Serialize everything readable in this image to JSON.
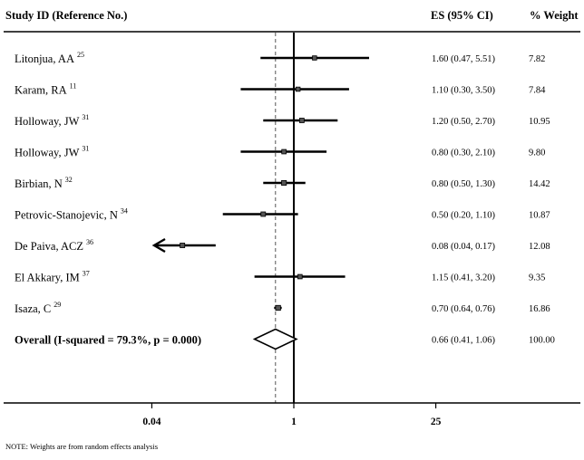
{
  "header": {
    "study_col": "Study ID (Reference No.)",
    "es_col": "ES (95% CI)",
    "weight_col": "% Weight"
  },
  "note": "NOTE: Weights are from random effects analysis",
  "chart_data": {
    "type": "forest",
    "scale": "log",
    "null_value": 1,
    "pooled_estimate": 0.66,
    "x_ticks": [
      {
        "value": 0.04,
        "label": "0.04"
      },
      {
        "value": 1,
        "label": "1"
      },
      {
        "value": 25,
        "label": "25"
      }
    ],
    "studies": [
      {
        "name": "Litonjua, AA",
        "ref": "25",
        "es": 1.6,
        "lo": 0.47,
        "hi": 5.51,
        "ci_text": "1.60 (0.47, 5.51)",
        "weight": "7.82"
      },
      {
        "name": "Karam, RA",
        "ref": "11",
        "es": 1.1,
        "lo": 0.3,
        "hi": 3.5,
        "ci_text": "1.10 (0.30, 3.50)",
        "weight": "7.84"
      },
      {
        "name": "Holloway, JW",
        "ref": "31",
        "es": 1.2,
        "lo": 0.5,
        "hi": 2.7,
        "ci_text": "1.20 (0.50, 2.70)",
        "weight": "10.95"
      },
      {
        "name": "Holloway, JW",
        "ref": "31",
        "es": 0.8,
        "lo": 0.3,
        "hi": 2.1,
        "ci_text": "0.80 (0.30, 2.10)",
        "weight": "9.80"
      },
      {
        "name": "Birbian, N",
        "ref": "32",
        "es": 0.8,
        "lo": 0.5,
        "hi": 1.3,
        "ci_text": "0.80 (0.50, 1.30)",
        "weight": "14.42"
      },
      {
        "name": "Petrovic-Stanojevic, N",
        "ref": "34",
        "es": 0.5,
        "lo": 0.2,
        "hi": 1.1,
        "ci_text": "0.50 (0.20, 1.10)",
        "weight": "10.87"
      },
      {
        "name": "De Paiva, ACZ",
        "ref": "36",
        "es": 0.08,
        "lo": 0.04,
        "hi": 0.17,
        "ci_text": "0.08 (0.04, 0.17)",
        "weight": "12.08"
      },
      {
        "name": "El Akkary, IM",
        "ref": "37",
        "es": 1.15,
        "lo": 0.41,
        "hi": 3.2,
        "ci_text": "1.15 (0.41, 3.20)",
        "weight": "9.35"
      },
      {
        "name": "Isaza, C",
        "ref": "29",
        "es": 0.7,
        "lo": 0.64,
        "hi": 0.76,
        "ci_text": "0.70 (0.64, 0.76)",
        "weight": "16.86"
      }
    ],
    "overall": {
      "label": "Overall  (I-squared = 79.3%, p = 0.000)",
      "es": 0.66,
      "lo": 0.41,
      "hi": 1.06,
      "ci_text": "0.66 (0.41, 1.06)",
      "weight": "100.00"
    }
  }
}
